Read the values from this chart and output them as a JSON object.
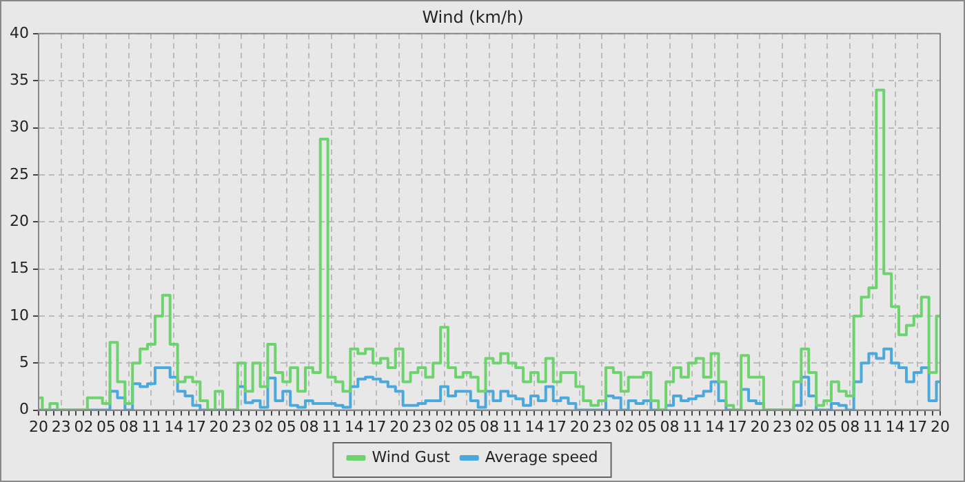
{
  "chart_data": {
    "type": "step",
    "title": "Wind (km/h)",
    "categories": [
      "20",
      null,
      null,
      "23",
      null,
      null,
      "02",
      null,
      null,
      "05",
      null,
      null,
      "08",
      null,
      null,
      "11",
      null,
      null,
      "14",
      null,
      null,
      "17",
      null,
      null,
      "20",
      null,
      null,
      "23",
      null,
      null,
      "02",
      null,
      null,
      "05",
      null,
      null,
      "08",
      null,
      null,
      "11",
      null,
      null,
      "14",
      null,
      null,
      "17",
      null,
      null,
      "20",
      null,
      null,
      "23",
      null,
      null,
      "02",
      null,
      null,
      "05",
      null,
      null,
      "08",
      null,
      null,
      "11",
      null,
      null,
      "14",
      null,
      null,
      "17",
      null,
      null,
      "20",
      null,
      null,
      "23",
      null,
      null,
      "02",
      null,
      null,
      "05",
      null,
      null,
      "08",
      null,
      null,
      "11",
      null,
      null,
      "14",
      null,
      null,
      "17",
      null,
      null,
      "20",
      null,
      null,
      "23",
      null,
      null,
      "02",
      null,
      null,
      "05",
      null,
      null,
      "08",
      null,
      null,
      "11",
      null,
      null,
      "14",
      null,
      null,
      "17",
      null,
      null,
      "20"
    ],
    "series": [
      {
        "name": "Wind Gust",
        "color": "#6dd36d",
        "values": [
          1.3,
          0,
          0.7,
          0,
          0,
          0,
          0,
          1.3,
          1.3,
          0.7,
          7.2,
          3,
          0.7,
          5,
          6.5,
          7,
          10,
          12.2,
          7,
          3,
          3.5,
          3,
          1,
          0,
          2,
          0,
          0,
          5,
          2,
          5,
          2.5,
          7,
          4,
          3,
          4.5,
          2,
          4.5,
          4,
          28.8,
          3.5,
          3,
          2,
          6.5,
          6,
          6.5,
          5,
          5.5,
          4.5,
          6.5,
          3,
          4,
          4.5,
          3.5,
          5,
          8.8,
          4.5,
          3.5,
          4,
          3.5,
          2,
          5.5,
          5,
          6,
          5,
          4.5,
          3,
          4,
          3,
          5.5,
          3,
          4,
          4,
          2.5,
          1,
          0.5,
          1,
          4.5,
          4,
          2,
          3.5,
          3.5,
          4,
          1,
          0,
          3,
          4.5,
          3.5,
          5,
          5.5,
          3.5,
          6,
          3,
          0.5,
          0,
          5.8,
          3.5,
          3.5,
          0,
          0,
          0,
          0,
          3,
          6.5,
          4,
          0.5,
          1,
          3,
          2,
          1.5,
          10,
          12,
          13,
          34,
          14.5,
          11,
          8,
          9,
          10,
          12,
          4,
          10
        ]
      },
      {
        "name": "Average speed",
        "color": "#4ba8dc",
        "values": [
          0,
          0,
          0,
          0,
          0,
          0,
          0,
          0,
          0,
          0,
          2,
          1.3,
          0,
          2.8,
          2.5,
          2.8,
          4.5,
          4.5,
          3.5,
          2,
          1.5,
          0.5,
          0,
          0,
          0,
          0,
          0,
          2.5,
          0.8,
          1,
          0.3,
          3.4,
          1,
          2,
          0.5,
          0.3,
          1,
          0.7,
          0.7,
          0.7,
          0.5,
          0.3,
          2.5,
          3.3,
          3.5,
          3.3,
          3,
          2.5,
          2,
          0.5,
          0.5,
          0.7,
          1,
          1,
          2.5,
          1.5,
          2,
          2,
          1,
          0.3,
          2,
          1,
          2,
          1.5,
          1.2,
          0.5,
          1.5,
          1,
          2.5,
          1,
          1.3,
          0.7,
          0,
          0,
          0,
          0,
          1.5,
          1.3,
          0,
          1,
          0.7,
          1,
          0,
          0,
          0.5,
          1.5,
          1,
          1.2,
          1.5,
          2,
          3,
          1,
          0,
          0,
          2.2,
          1,
          0.7,
          0,
          0,
          0,
          0,
          0.5,
          3.5,
          1.5,
          0,
          0,
          0.7,
          0.5,
          0,
          3,
          5,
          6,
          5.5,
          6.5,
          5,
          4.5,
          3,
          4,
          4.5,
          1,
          3
        ]
      }
    ],
    "ylim": [
      0,
      40
    ],
    "yticks": [
      0,
      5,
      10,
      15,
      20,
      25,
      30,
      35,
      40
    ],
    "grid": true,
    "legend": "bottom",
    "line_style": "solid",
    "marker": "none"
  }
}
